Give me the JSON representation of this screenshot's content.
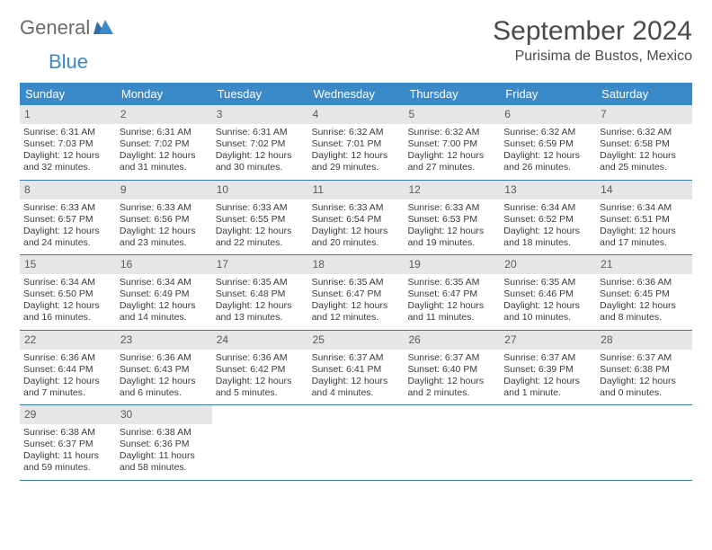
{
  "brand": {
    "word1": "General",
    "word2": "Blue"
  },
  "title": "September 2024",
  "location": "Purisima de Bustos, Mexico",
  "colors": {
    "header_bg": "#3a8ac9",
    "header_text": "#ffffff",
    "daynum_bg": "#e6e6e6",
    "daynum_text": "#5a5a5a",
    "rule": "#3a7aa8",
    "body_text": "#3a3a3a",
    "page_bg": "#ffffff"
  },
  "typography": {
    "title_fontsize": 30,
    "location_fontsize": 16,
    "dayhead_fontsize": 13,
    "cell_fontsize": 10.5
  },
  "day_headers": [
    "Sunday",
    "Monday",
    "Tuesday",
    "Wednesday",
    "Thursday",
    "Friday",
    "Saturday"
  ],
  "weeks": [
    [
      {
        "n": "1",
        "sunrise": "Sunrise: 6:31 AM",
        "sunset": "Sunset: 7:03 PM",
        "day1": "Daylight: 12 hours",
        "day2": "and 32 minutes."
      },
      {
        "n": "2",
        "sunrise": "Sunrise: 6:31 AM",
        "sunset": "Sunset: 7:02 PM",
        "day1": "Daylight: 12 hours",
        "day2": "and 31 minutes."
      },
      {
        "n": "3",
        "sunrise": "Sunrise: 6:31 AM",
        "sunset": "Sunset: 7:02 PM",
        "day1": "Daylight: 12 hours",
        "day2": "and 30 minutes."
      },
      {
        "n": "4",
        "sunrise": "Sunrise: 6:32 AM",
        "sunset": "Sunset: 7:01 PM",
        "day1": "Daylight: 12 hours",
        "day2": "and 29 minutes."
      },
      {
        "n": "5",
        "sunrise": "Sunrise: 6:32 AM",
        "sunset": "Sunset: 7:00 PM",
        "day1": "Daylight: 12 hours",
        "day2": "and 27 minutes."
      },
      {
        "n": "6",
        "sunrise": "Sunrise: 6:32 AM",
        "sunset": "Sunset: 6:59 PM",
        "day1": "Daylight: 12 hours",
        "day2": "and 26 minutes."
      },
      {
        "n": "7",
        "sunrise": "Sunrise: 6:32 AM",
        "sunset": "Sunset: 6:58 PM",
        "day1": "Daylight: 12 hours",
        "day2": "and 25 minutes."
      }
    ],
    [
      {
        "n": "8",
        "sunrise": "Sunrise: 6:33 AM",
        "sunset": "Sunset: 6:57 PM",
        "day1": "Daylight: 12 hours",
        "day2": "and 24 minutes."
      },
      {
        "n": "9",
        "sunrise": "Sunrise: 6:33 AM",
        "sunset": "Sunset: 6:56 PM",
        "day1": "Daylight: 12 hours",
        "day2": "and 23 minutes."
      },
      {
        "n": "10",
        "sunrise": "Sunrise: 6:33 AM",
        "sunset": "Sunset: 6:55 PM",
        "day1": "Daylight: 12 hours",
        "day2": "and 22 minutes."
      },
      {
        "n": "11",
        "sunrise": "Sunrise: 6:33 AM",
        "sunset": "Sunset: 6:54 PM",
        "day1": "Daylight: 12 hours",
        "day2": "and 20 minutes."
      },
      {
        "n": "12",
        "sunrise": "Sunrise: 6:33 AM",
        "sunset": "Sunset: 6:53 PM",
        "day1": "Daylight: 12 hours",
        "day2": "and 19 minutes."
      },
      {
        "n": "13",
        "sunrise": "Sunrise: 6:34 AM",
        "sunset": "Sunset: 6:52 PM",
        "day1": "Daylight: 12 hours",
        "day2": "and 18 minutes."
      },
      {
        "n": "14",
        "sunrise": "Sunrise: 6:34 AM",
        "sunset": "Sunset: 6:51 PM",
        "day1": "Daylight: 12 hours",
        "day2": "and 17 minutes."
      }
    ],
    [
      {
        "n": "15",
        "sunrise": "Sunrise: 6:34 AM",
        "sunset": "Sunset: 6:50 PM",
        "day1": "Daylight: 12 hours",
        "day2": "and 16 minutes."
      },
      {
        "n": "16",
        "sunrise": "Sunrise: 6:34 AM",
        "sunset": "Sunset: 6:49 PM",
        "day1": "Daylight: 12 hours",
        "day2": "and 14 minutes."
      },
      {
        "n": "17",
        "sunrise": "Sunrise: 6:35 AM",
        "sunset": "Sunset: 6:48 PM",
        "day1": "Daylight: 12 hours",
        "day2": "and 13 minutes."
      },
      {
        "n": "18",
        "sunrise": "Sunrise: 6:35 AM",
        "sunset": "Sunset: 6:47 PM",
        "day1": "Daylight: 12 hours",
        "day2": "and 12 minutes."
      },
      {
        "n": "19",
        "sunrise": "Sunrise: 6:35 AM",
        "sunset": "Sunset: 6:47 PM",
        "day1": "Daylight: 12 hours",
        "day2": "and 11 minutes."
      },
      {
        "n": "20",
        "sunrise": "Sunrise: 6:35 AM",
        "sunset": "Sunset: 6:46 PM",
        "day1": "Daylight: 12 hours",
        "day2": "and 10 minutes."
      },
      {
        "n": "21",
        "sunrise": "Sunrise: 6:36 AM",
        "sunset": "Sunset: 6:45 PM",
        "day1": "Daylight: 12 hours",
        "day2": "and 8 minutes."
      }
    ],
    [
      {
        "n": "22",
        "sunrise": "Sunrise: 6:36 AM",
        "sunset": "Sunset: 6:44 PM",
        "day1": "Daylight: 12 hours",
        "day2": "and 7 minutes."
      },
      {
        "n": "23",
        "sunrise": "Sunrise: 6:36 AM",
        "sunset": "Sunset: 6:43 PM",
        "day1": "Daylight: 12 hours",
        "day2": "and 6 minutes."
      },
      {
        "n": "24",
        "sunrise": "Sunrise: 6:36 AM",
        "sunset": "Sunset: 6:42 PM",
        "day1": "Daylight: 12 hours",
        "day2": "and 5 minutes."
      },
      {
        "n": "25",
        "sunrise": "Sunrise: 6:37 AM",
        "sunset": "Sunset: 6:41 PM",
        "day1": "Daylight: 12 hours",
        "day2": "and 4 minutes."
      },
      {
        "n": "26",
        "sunrise": "Sunrise: 6:37 AM",
        "sunset": "Sunset: 6:40 PM",
        "day1": "Daylight: 12 hours",
        "day2": "and 2 minutes."
      },
      {
        "n": "27",
        "sunrise": "Sunrise: 6:37 AM",
        "sunset": "Sunset: 6:39 PM",
        "day1": "Daylight: 12 hours",
        "day2": "and 1 minute."
      },
      {
        "n": "28",
        "sunrise": "Sunrise: 6:37 AM",
        "sunset": "Sunset: 6:38 PM",
        "day1": "Daylight: 12 hours",
        "day2": "and 0 minutes."
      }
    ],
    [
      {
        "n": "29",
        "sunrise": "Sunrise: 6:38 AM",
        "sunset": "Sunset: 6:37 PM",
        "day1": "Daylight: 11 hours",
        "day2": "and 59 minutes."
      },
      {
        "n": "30",
        "sunrise": "Sunrise: 6:38 AM",
        "sunset": "Sunset: 6:36 PM",
        "day1": "Daylight: 11 hours",
        "day2": "and 58 minutes."
      },
      {
        "empty": true
      },
      {
        "empty": true
      },
      {
        "empty": true
      },
      {
        "empty": true
      },
      {
        "empty": true
      }
    ]
  ]
}
